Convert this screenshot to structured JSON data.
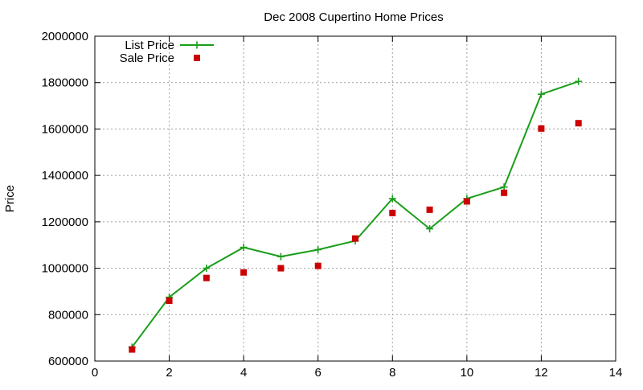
{
  "chart_data": {
    "type": "line",
    "title": "Dec 2008 Cupertino Home Prices",
    "xlabel": "",
    "ylabel": "Price",
    "xlim": [
      0,
      14
    ],
    "ylim": [
      600000,
      2000000
    ],
    "x_ticks": [
      0,
      2,
      4,
      6,
      8,
      10,
      12,
      14
    ],
    "y_ticks": [
      600000,
      800000,
      1000000,
      1200000,
      1400000,
      1600000,
      1800000,
      2000000
    ],
    "grid": true,
    "legend_position": "top-left",
    "series": [
      {
        "name": "List Price",
        "style": "linespoints",
        "marker": "plus",
        "color": "#1a9e1a",
        "x": [
          1,
          2,
          3,
          4,
          5,
          6,
          7,
          8,
          9,
          10,
          11,
          12,
          13
        ],
        "values": [
          660000,
          875000,
          1000000,
          1090000,
          1050000,
          1080000,
          1118000,
          1300000,
          1170000,
          1300000,
          1350000,
          1750000,
          1805000
        ]
      },
      {
        "name": "Sale Price",
        "style": "points",
        "marker": "square",
        "color": "#cc0000",
        "x": [
          1,
          2,
          3,
          4,
          5,
          6,
          7,
          8,
          9,
          10,
          11,
          12,
          13
        ],
        "values": [
          650000,
          860000,
          958000,
          982000,
          1000000,
          1010000,
          1128000,
          1238000,
          1252000,
          1288000,
          1325000,
          1602000,
          1625000
        ]
      }
    ]
  }
}
